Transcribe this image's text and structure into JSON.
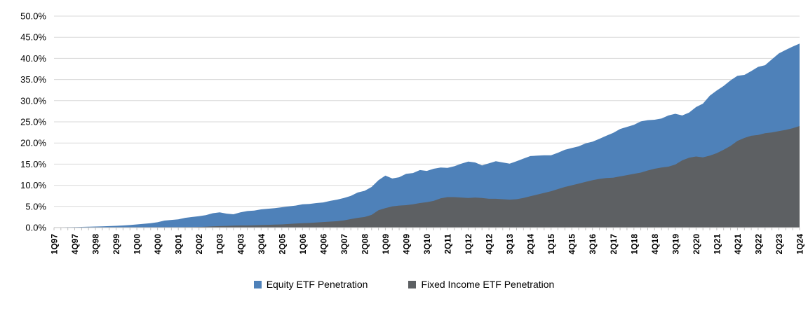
{
  "chart_data": {
    "type": "area",
    "title": "",
    "grid": true,
    "legend_position": "bottom",
    "x_axis": {
      "frequency": "quarterly",
      "start": "1Q97",
      "end": "1Q24",
      "label_every_n_points": 3,
      "tick_labels": [
        "1Q97",
        "4Q97",
        "3Q98",
        "2Q99",
        "1Q00",
        "4Q00",
        "3Q01",
        "2Q02",
        "1Q03",
        "4Q03",
        "3Q04",
        "2Q05",
        "1Q06",
        "4Q06",
        "3Q07",
        "2Q08",
        "1Q09",
        "4Q09",
        "3Q10",
        "2Q11",
        "1Q12",
        "4Q12",
        "3Q13",
        "2Q14",
        "1Q15",
        "4Q15",
        "3Q16",
        "2Q17",
        "1Q18",
        "4Q18",
        "3Q19",
        "2Q20",
        "1Q21",
        "4Q21",
        "3Q22",
        "2Q23",
        "1Q24"
      ]
    },
    "y_axis": {
      "min": 0,
      "max": 50,
      "step": 5,
      "unit": "%",
      "tick_labels": [
        "0.0%",
        "5.0%",
        "10.0%",
        "15.0%",
        "20.0%",
        "25.0%",
        "30.0%",
        "35.0%",
        "40.0%",
        "45.0%",
        "50.0%"
      ]
    },
    "series": [
      {
        "name": "Equity ETF Penetration",
        "color": "#4E81B9",
        "values": [
          0.05,
          0.08,
          0.1,
          0.13,
          0.16,
          0.2,
          0.25,
          0.3,
          0.35,
          0.42,
          0.5,
          0.6,
          0.75,
          0.9,
          1.05,
          1.25,
          1.65,
          1.8,
          1.95,
          2.3,
          2.5,
          2.7,
          2.95,
          3.4,
          3.6,
          3.3,
          3.15,
          3.6,
          3.9,
          4.0,
          4.3,
          4.45,
          4.6,
          4.8,
          5.0,
          5.2,
          5.5,
          5.6,
          5.8,
          5.95,
          6.3,
          6.6,
          7.0,
          7.5,
          8.3,
          8.7,
          9.6,
          11.2,
          12.3,
          11.6,
          11.9,
          12.7,
          12.9,
          13.6,
          13.4,
          13.9,
          14.2,
          14.1,
          14.5,
          15.1,
          15.6,
          15.4,
          14.7,
          15.2,
          15.7,
          15.4,
          15.1,
          15.7,
          16.3,
          16.9,
          17.0,
          17.1,
          17.1,
          17.7,
          18.4,
          18.8,
          19.2,
          19.9,
          20.3,
          21.0,
          21.7,
          22.4,
          23.3,
          23.8,
          24.3,
          25.1,
          25.4,
          25.5,
          25.8,
          26.5,
          26.9,
          26.5,
          27.2,
          28.5,
          29.3,
          31.2,
          32.4,
          33.5,
          34.8,
          35.9,
          36.1,
          37.0,
          38.0,
          38.4,
          39.8,
          41.2,
          42.0,
          42.8,
          43.5
        ]
      },
      {
        "name": "Fixed Income ETF Penetration",
        "color": "#5D6063",
        "values": [
          0,
          0,
          0,
          0,
          0,
          0,
          0,
          0,
          0,
          0,
          0,
          0,
          0,
          0,
          0,
          0,
          0,
          0,
          0.05,
          0.1,
          0.1,
          0.15,
          0.2,
          0.3,
          0.35,
          0.4,
          0.45,
          0.5,
          0.5,
          0.55,
          0.6,
          0.65,
          0.7,
          0.75,
          0.85,
          0.95,
          1.05,
          1.1,
          1.2,
          1.3,
          1.4,
          1.5,
          1.7,
          2.0,
          2.3,
          2.5,
          3.0,
          4.1,
          4.6,
          5.0,
          5.2,
          5.3,
          5.5,
          5.8,
          6.0,
          6.3,
          6.9,
          7.2,
          7.2,
          7.1,
          7.0,
          7.1,
          7.0,
          6.8,
          6.8,
          6.7,
          6.6,
          6.7,
          7.0,
          7.4,
          7.8,
          8.2,
          8.6,
          9.1,
          9.6,
          10.0,
          10.4,
          10.8,
          11.2,
          11.5,
          11.7,
          11.8,
          12.1,
          12.4,
          12.7,
          13.0,
          13.5,
          13.9,
          14.2,
          14.4,
          14.9,
          15.9,
          16.5,
          16.8,
          16.6,
          17.0,
          17.6,
          18.4,
          19.3,
          20.5,
          21.2,
          21.7,
          21.9,
          22.3,
          22.5,
          22.8,
          23.1,
          23.5,
          24.0
        ]
      }
    ],
    "axis_colors": {
      "gridline": "#D9D9D9",
      "axis_line": "#BFBFBF",
      "tick": "#BFBFBF"
    }
  }
}
